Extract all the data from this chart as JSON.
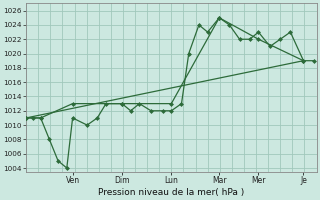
{
  "xlabel": "Pression niveau de la mer( hPa )",
  "background_color": "#cce8e0",
  "grid_color": "#a0c8bc",
  "line_color": "#2d6b3a",
  "ylim": [
    1003.5,
    1027
  ],
  "ytick_vals": [
    1004,
    1006,
    1008,
    1010,
    1012,
    1014,
    1016,
    1018,
    1020,
    1022,
    1024,
    1026
  ],
  "day_labels": [
    "Ven",
    "Dim",
    "Lun",
    "Mar",
    "Mer",
    "Je"
  ],
  "day_x": [
    0.16,
    0.33,
    0.5,
    0.665,
    0.8,
    0.955
  ],
  "xlim": [
    0,
    1.0
  ],
  "line1_x": [
    0.0,
    0.025,
    0.05,
    0.08,
    0.11,
    0.14,
    0.16,
    0.21,
    0.245,
    0.275,
    0.33,
    0.36,
    0.39,
    0.43,
    0.47,
    0.5,
    0.535,
    0.56,
    0.595,
    0.625,
    0.665,
    0.7,
    0.735,
    0.77,
    0.8,
    0.84,
    0.875,
    0.91,
    0.955,
    0.99
  ],
  "line1_y": [
    1011,
    1011,
    1011,
    1008,
    1005,
    1004,
    1011,
    1010,
    1011,
    1013,
    1013,
    1012,
    1013,
    1012,
    1012,
    1012,
    1013,
    1020,
    1024,
    1023,
    1025,
    1024,
    1022,
    1022,
    1023,
    1021,
    1022,
    1023,
    1019,
    1019
  ],
  "line2_x": [
    0.0,
    0.05,
    0.16,
    0.33,
    0.5,
    0.665,
    0.8,
    0.955
  ],
  "line2_y": [
    1011,
    1011,
    1013,
    1013,
    1013,
    1025,
    1022,
    1019
  ],
  "line3_x": [
    0.0,
    0.955
  ],
  "line3_y": [
    1011,
    1019
  ],
  "lw": 0.9,
  "ms": 2.5
}
